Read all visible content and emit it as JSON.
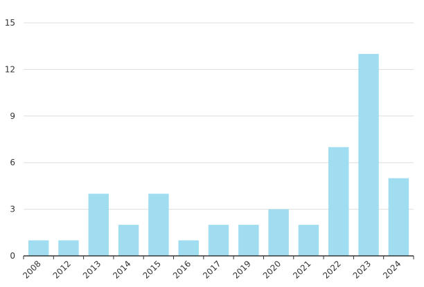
{
  "chart_data": {
    "type": "bar",
    "title": "",
    "xlabel": "",
    "ylabel": "",
    "categories": [
      "2008",
      "2012",
      "2013",
      "2014",
      "2015",
      "2016",
      "2017",
      "2019",
      "2020",
      "2021",
      "2022",
      "2023",
      "2024"
    ],
    "values": [
      1,
      1,
      4,
      2,
      4,
      1,
      2,
      2,
      3,
      2,
      7,
      13,
      5
    ],
    "ylim": [
      0,
      15
    ],
    "yticks": [
      0,
      3,
      6,
      9,
      12,
      15
    ],
    "grid": true,
    "legend": "none",
    "bar_color": "#a0ddf0"
  }
}
